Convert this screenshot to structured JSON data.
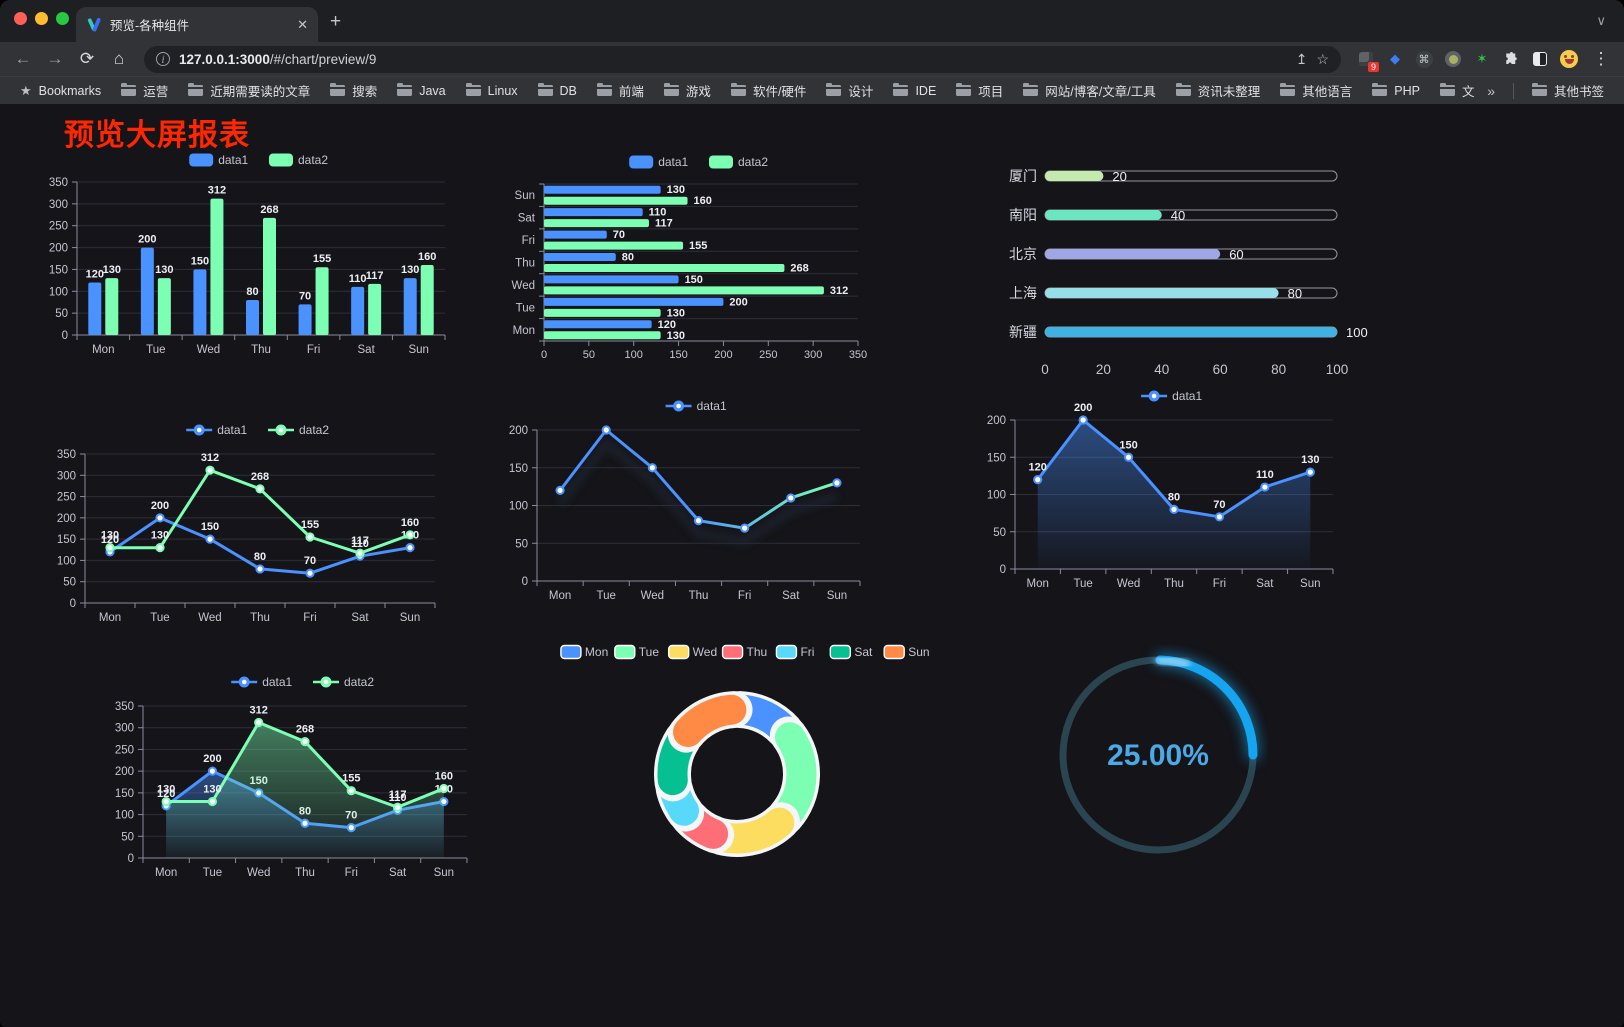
{
  "browser": {
    "traffic_lights": [
      "#ff5f57",
      "#febc2e",
      "#28c840"
    ],
    "tab": {
      "title": "预览-各种组件",
      "close_icon": "✕"
    },
    "new_tab_icon": "+",
    "tab_chevron": "∨",
    "nav": {
      "back": "←",
      "forward": "→",
      "reload": "⟳",
      "home": "⌂"
    },
    "address": {
      "info_icon": "i",
      "url_host": "127.0.0.1:3000",
      "url_path": "/#/chart/preview/9",
      "share_icon": "↥",
      "bookmark_icon": "☆"
    },
    "extensions": [
      {
        "name": "blocker-extension",
        "badge": "9"
      },
      {
        "name": "lamp-extension",
        "glyph": "◆",
        "color": "#3d7ef2"
      },
      {
        "name": "command-extension",
        "glyph": "⌘"
      },
      {
        "name": "dot-extension"
      },
      {
        "name": "star-extension",
        "glyph": "✶",
        "color": "#35c24a"
      },
      {
        "name": "puzzle-extension"
      },
      {
        "name": "dark-mode-extension"
      },
      {
        "name": "profile-avatar"
      }
    ],
    "menu_icon": "⋮",
    "bookmarks_bar": {
      "items": [
        {
          "icon": "star",
          "label": "Bookmarks"
        },
        {
          "icon": "folder",
          "label": "运营"
        },
        {
          "icon": "folder",
          "label": "近期需要读的文章"
        },
        {
          "icon": "folder",
          "label": "搜索"
        },
        {
          "icon": "folder",
          "label": "Java"
        },
        {
          "icon": "folder",
          "label": "Linux"
        },
        {
          "icon": "folder",
          "label": "DB"
        },
        {
          "icon": "folder",
          "label": "前端"
        },
        {
          "icon": "folder",
          "label": "游戏"
        },
        {
          "icon": "folder",
          "label": "软件/硬件"
        },
        {
          "icon": "folder",
          "label": "设计"
        },
        {
          "icon": "folder",
          "label": "IDE"
        },
        {
          "icon": "folder",
          "label": "项目"
        },
        {
          "icon": "folder",
          "label": "网站/博客/文章/工具"
        },
        {
          "icon": "folder",
          "label": "资讯未整理"
        },
        {
          "icon": "folder",
          "label": "其他语言"
        },
        {
          "icon": "folder",
          "label": "PHP"
        },
        {
          "icon": "folder",
          "label": "文件服务器"
        }
      ],
      "overflow_icon": "»",
      "other_bookmarks": {
        "icon": "folder",
        "label": "其他书签"
      }
    }
  },
  "page": {
    "title": "预览大屏报表",
    "title_color": "#ff2600",
    "background": "#141419"
  },
  "chart_data": [
    {
      "id": "vertical-grouped-bar-chart",
      "type": "bar",
      "categories": [
        "Mon",
        "Tue",
        "Wed",
        "Thu",
        "Fri",
        "Sat",
        "Sun"
      ],
      "series": [
        {
          "name": "data1",
          "color": "#4992ff",
          "values": [
            120,
            200,
            150,
            80,
            70,
            110,
            130
          ]
        },
        {
          "name": "data2",
          "color": "#7cffb2",
          "values": [
            130,
            130,
            312,
            268,
            155,
            117,
            160
          ]
        }
      ],
      "ylim": [
        0,
        350
      ],
      "yticks": [
        0,
        50,
        100,
        150,
        200,
        250,
        300,
        350
      ],
      "legend_position": "top",
      "grid": true
    },
    {
      "id": "horizontal-grouped-bar-chart",
      "type": "bar-horizontal",
      "categories_top_to_bottom": [
        "Sun",
        "Sat",
        "Fri",
        "Thu",
        "Wed",
        "Tue",
        "Mon"
      ],
      "series": [
        {
          "name": "data1",
          "color": "#4992ff",
          "values_top_to_bottom": [
            130,
            110,
            70,
            80,
            150,
            200,
            120
          ]
        },
        {
          "name": "data2",
          "color": "#7cffb2",
          "values_top_to_bottom": [
            160,
            117,
            155,
            268,
            312,
            130,
            130
          ]
        }
      ],
      "xlim": [
        0,
        350
      ],
      "xticks": [
        0,
        50,
        100,
        150,
        200,
        250,
        300,
        350
      ],
      "legend_position": "top",
      "grid": true
    },
    {
      "id": "progress-bar-list-chart",
      "type": "bar",
      "rows": [
        {
          "label": "厦门",
          "value": 20,
          "color": "#c4ebad"
        },
        {
          "label": "南阳",
          "value": 40,
          "color": "#6be6c1"
        },
        {
          "label": "北京",
          "value": 60,
          "color": "#a0a7e6"
        },
        {
          "label": "上海",
          "value": 80,
          "color": "#96dee8"
        },
        {
          "label": "新疆",
          "value": 100,
          "color": "#3fb1e3"
        }
      ],
      "xlim": [
        0,
        100
      ],
      "xticks": [
        0,
        20,
        40,
        60,
        80,
        100
      ]
    },
    {
      "id": "two-series-line-chart",
      "type": "line",
      "categories": [
        "Mon",
        "Tue",
        "Wed",
        "Thu",
        "Fri",
        "Sat",
        "Sun"
      ],
      "series": [
        {
          "name": "data1",
          "color": "#4992ff",
          "values": [
            120,
            200,
            150,
            80,
            70,
            110,
            130
          ]
        },
        {
          "name": "data2",
          "color": "#7cffb2",
          "values": [
            130,
            130,
            312,
            268,
            155,
            117,
            160
          ]
        }
      ],
      "ylim": [
        0,
        350
      ],
      "yticks": [
        0,
        50,
        100,
        150,
        200,
        250,
        300,
        350
      ],
      "labels": true,
      "area": false,
      "legend_position": "top"
    },
    {
      "id": "gradient-line-chart",
      "type": "line",
      "categories": [
        "Mon",
        "Tue",
        "Wed",
        "Thu",
        "Fri",
        "Sat",
        "Sun"
      ],
      "series": [
        {
          "name": "data1",
          "color": "#4992ff",
          "gradient": [
            "#4992ff",
            "#7cffb2"
          ],
          "values": [
            120,
            200,
            150,
            80,
            70,
            110,
            130
          ]
        }
      ],
      "ylim": [
        0,
        200
      ],
      "yticks": [
        0,
        50,
        100,
        150,
        200
      ],
      "labels": false,
      "area": false,
      "shadow": true,
      "legend_position": "top"
    },
    {
      "id": "single-area-line-chart",
      "type": "area",
      "categories": [
        "Mon",
        "Tue",
        "Wed",
        "Thu",
        "Fri",
        "Sat",
        "Sun"
      ],
      "series": [
        {
          "name": "data1",
          "color": "#4992ff",
          "values": [
            120,
            200,
            150,
            80,
            70,
            110,
            130
          ]
        }
      ],
      "ylim": [
        0,
        200
      ],
      "yticks": [
        0,
        50,
        100,
        150,
        200
      ],
      "labels": true,
      "area": true,
      "legend_position": "top"
    },
    {
      "id": "two-series-area-line-chart",
      "type": "area",
      "categories": [
        "Mon",
        "Tue",
        "Wed",
        "Thu",
        "Fri",
        "Sat",
        "Sun"
      ],
      "series": [
        {
          "name": "data1",
          "color": "#4992ff",
          "values": [
            120,
            200,
            150,
            80,
            70,
            110,
            130
          ]
        },
        {
          "name": "data2",
          "color": "#7cffb2",
          "values": [
            130,
            130,
            312,
            268,
            155,
            117,
            160
          ]
        }
      ],
      "ylim": [
        0,
        350
      ],
      "yticks": [
        0,
        50,
        100,
        150,
        200,
        250,
        300,
        350
      ],
      "labels": true,
      "area": true,
      "legend_position": "top"
    },
    {
      "id": "donut-pie-chart",
      "type": "pie",
      "items": [
        {
          "name": "Mon",
          "value": 120,
          "color": "#4992ff"
        },
        {
          "name": "Tue",
          "value": 200,
          "color": "#7cffb2"
        },
        {
          "name": "Wed",
          "value": 150,
          "color": "#fddd60"
        },
        {
          "name": "Thu",
          "value": 80,
          "color": "#ff6e76"
        },
        {
          "name": "Fri",
          "value": 70,
          "color": "#58d9f9"
        },
        {
          "name": "Sat",
          "value": 110,
          "color": "#05c091"
        },
        {
          "name": "Sun",
          "value": 130,
          "color": "#ff8a45"
        }
      ],
      "legend_position": "top",
      "donut": true
    },
    {
      "id": "circular-progress-gauge",
      "type": "gauge",
      "percent": 25,
      "value_text": "25.00%",
      "color": "#14a4f0",
      "track_color": "#2a4550",
      "text_color": "#4aa9e6"
    }
  ]
}
